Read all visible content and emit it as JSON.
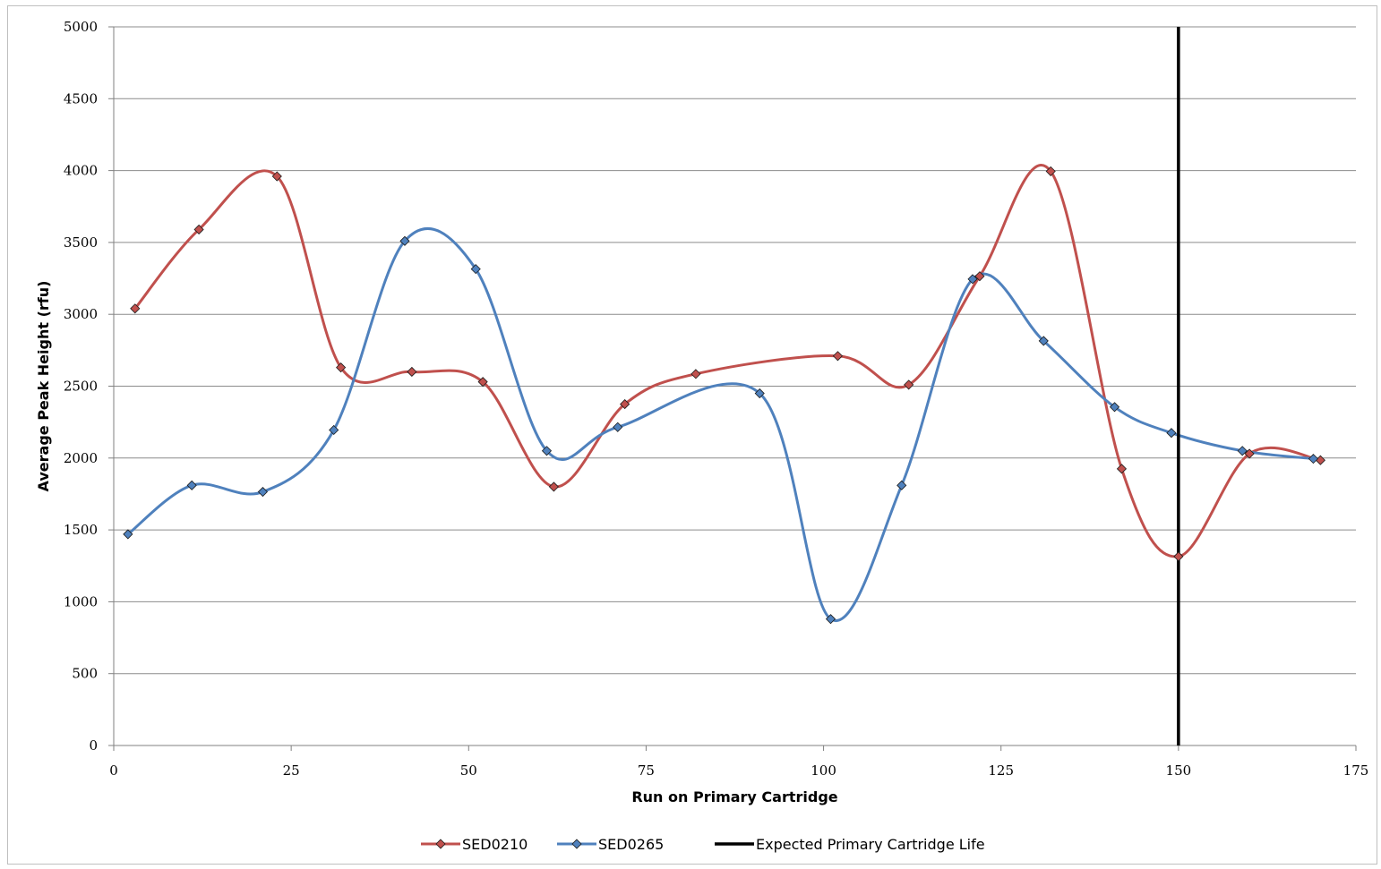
{
  "chart_data": {
    "type": "line",
    "title": "",
    "xlabel": "Run on Primary Cartridge",
    "ylabel": "Average Peak Height (rfu)",
    "xlim": [
      0,
      175
    ],
    "ylim": [
      0,
      5000
    ],
    "xticks": [
      0,
      25,
      50,
      75,
      100,
      125,
      150,
      175
    ],
    "yticks": [
      0,
      500,
      1000,
      1500,
      2000,
      2500,
      3000,
      3500,
      4000,
      4500,
      5000
    ],
    "grid": true,
    "smooth": true,
    "legend_position": "bottom",
    "series": [
      {
        "name": "SED0210",
        "color": "#c0504d",
        "marker": "diamond",
        "x": [
          3,
          12,
          23,
          32,
          42,
          52,
          62,
          72,
          82,
          102,
          112,
          122,
          132,
          142,
          150,
          160,
          170
        ],
        "y": [
          3040,
          3590,
          3960,
          2630,
          2600,
          2530,
          1800,
          2375,
          2585,
          2710,
          2510,
          3265,
          3995,
          1925,
          1315,
          2030,
          1985
        ]
      },
      {
        "name": "SED0265",
        "color": "#4f81bd",
        "marker": "diamond",
        "x": [
          2,
          11,
          21,
          31,
          41,
          51,
          61,
          71,
          91,
          101,
          111,
          121,
          131,
          141,
          149,
          159,
          169
        ],
        "y": [
          1470,
          1810,
          1765,
          2195,
          3510,
          3315,
          2050,
          2215,
          2450,
          880,
          1810,
          3245,
          2815,
          2355,
          2175,
          2050,
          1995
        ]
      },
      {
        "name": "Expected Primary Cartridge Life",
        "color": "#000000",
        "type": "vline",
        "x": [
          150,
          150
        ],
        "y": [
          0,
          5000
        ]
      }
    ]
  }
}
